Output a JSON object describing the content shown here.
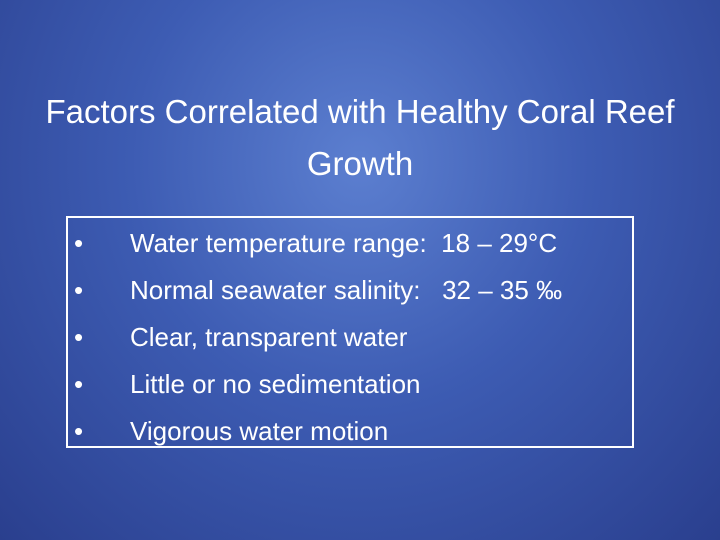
{
  "title": "Factors Correlated with Healthy Coral Reef Growth",
  "bullets": [
    "Water temperature range:  18 – 29°C",
    "Normal seawater salinity:   32 – 35 ‰",
    "Clear, transparent water",
    "Little or no sedimentation",
    "Vigorous water motion"
  ]
}
